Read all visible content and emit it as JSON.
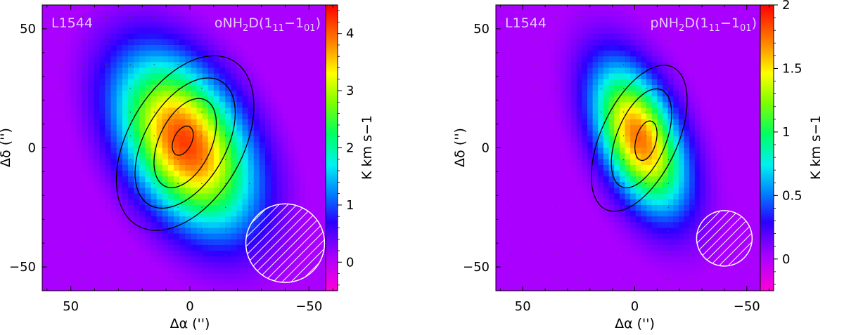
{
  "chart_data": [
    {
      "type": "heatmap",
      "source_label": "L1544",
      "line_label": {
        "prefix": "oNH",
        "sub1": "2",
        "mid": "D(1",
        "sub2": "11",
        "dash": "−1",
        "sub3": "01",
        "suffix": ")"
      },
      "xlabel": "Δα ('')",
      "ylabel": "Δδ ('')",
      "xlim": [
        62,
        -62
      ],
      "ylim": [
        -60,
        60
      ],
      "xticks": [
        50,
        0,
        -50
      ],
      "yticks": [
        50,
        0,
        -50
      ],
      "xtick_labels": [
        "50",
        "0",
        "−50"
      ],
      "ytick_labels": [
        "50",
        "0",
        "−50"
      ],
      "colorbar": {
        "label": "K km s−1",
        "min": -0.5,
        "max": 4.5,
        "ticks": [
          0,
          1,
          2,
          3,
          4
        ],
        "tick_labels": [
          "0",
          "1",
          "2",
          "3",
          "4"
        ]
      },
      "peak": {
        "x": 3,
        "y": 3,
        "value": 4.2
      },
      "contours": [
        {
          "level": 0.8,
          "cx": 2,
          "cy": 2,
          "rx": 24,
          "ry": 40,
          "angle": 30
        },
        {
          "level": 1.6,
          "cx": 2,
          "cy": 2,
          "rx": 17,
          "ry": 30,
          "angle": 30
        },
        {
          "level": 2.4,
          "cx": 2,
          "cy": 2,
          "rx": 11,
          "ry": 20,
          "angle": 25
        },
        {
          "level": 3.6,
          "cx": 3,
          "cy": 3,
          "rx": 3.8,
          "ry": 6.5,
          "angle": 25
        }
      ],
      "beam": {
        "x": -40,
        "y": -40,
        "diameter": 28
      }
    },
    {
      "type": "heatmap",
      "source_label": "L1544",
      "line_label": {
        "prefix": "pNH",
        "sub1": "2",
        "mid": "D(1",
        "sub2": "11",
        "dash": "−1",
        "sub3": "01",
        "suffix": ")"
      },
      "xlabel": "Δα ('')",
      "ylabel": "Δδ ('')",
      "xlim": [
        62,
        -62
      ],
      "ylim": [
        -60,
        60
      ],
      "xticks": [
        50,
        0,
        -50
      ],
      "yticks": [
        50,
        0,
        -50
      ],
      "xtick_labels": [
        "50",
        "0",
        "−50"
      ],
      "ytick_labels": [
        "50",
        "0",
        "−50"
      ],
      "colorbar": {
        "label": "K km s−1",
        "min": -0.25,
        "max": 2.0,
        "ticks": [
          0,
          0.5,
          1,
          1.5,
          2
        ],
        "tick_labels": [
          "0",
          "0.5",
          "1",
          "1.5",
          "2"
        ]
      },
      "peak": {
        "x": -5,
        "y": 2,
        "value": 1.75
      },
      "contours": [
        {
          "level": 0.5,
          "cx": -2,
          "cy": 4,
          "rx": 17,
          "ry": 33,
          "angle": 25
        },
        {
          "level": 1.0,
          "cx": -3,
          "cy": 4,
          "rx": 11,
          "ry": 22,
          "angle": 22
        },
        {
          "level": 1.5,
          "cx": -5,
          "cy": 3,
          "rx": 4.5,
          "ry": 8.5,
          "angle": 15
        }
      ],
      "beam": {
        "x": -40,
        "y": -38,
        "diameter": 21
      }
    }
  ]
}
